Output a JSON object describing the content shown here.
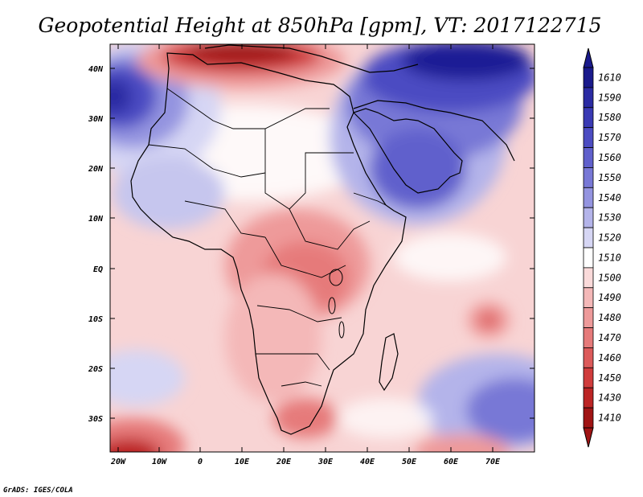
{
  "title": "Geopotential Height at 850hPa [gpm], VT: 2017122715",
  "credit": "GrADS: IGES/COLA",
  "lat_labels": [
    "40N",
    "30N",
    "20N",
    "10N",
    "EQ",
    "10S",
    "20S",
    "30S"
  ],
  "lon_labels": [
    "20W",
    "10W",
    "0",
    "10E",
    "20E",
    "30E",
    "40E",
    "50E",
    "60E",
    "70E"
  ],
  "colorbar": {
    "labels": [
      "1610",
      "1590",
      "1580",
      "1570",
      "1560",
      "1550",
      "1540",
      "1530",
      "1520",
      "1510",
      "1500",
      "1490",
      "1480",
      "1470",
      "1460",
      "1450",
      "1430",
      "1410"
    ],
    "colors": [
      "#1a1a8c",
      "#2b2ba3",
      "#3a3ab4",
      "#4c4cc2",
      "#6060cc",
      "#7878d6",
      "#9494e0",
      "#b4b4ea",
      "#d6d6f4",
      "#ffffff",
      "#fadada",
      "#f4b8b8",
      "#ee9a9a",
      "#e67a7a",
      "#dc5a5a",
      "#d03c3c",
      "#bc2424",
      "#a01414"
    ]
  },
  "map_colors": {
    "deep_blue": "#1f1f95",
    "mid_blue": "#5a5ac8",
    "light_blue": "#c6c6ee",
    "white": "#ffffff",
    "light_red": "#f8d4d4",
    "mid_red": "#ee9e9e",
    "deep_red": "#a01414"
  }
}
